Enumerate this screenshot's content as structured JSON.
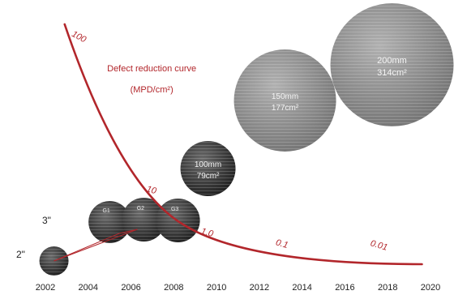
{
  "chart_data": {
    "type": "line",
    "x_ticks": [
      "2002",
      "2004",
      "2006",
      "2008",
      "2010",
      "2012",
      "2014",
      "2016",
      "2018",
      "2020"
    ],
    "xlim": [
      2002,
      2020
    ],
    "curve": {
      "label_line1": "Defect reduction curve",
      "label_line2": "(MPD/cm²)",
      "color": "#b2262b",
      "points": [
        {
          "x": 2002.8,
          "y": 100
        },
        {
          "x": 2006.8,
          "y": 10
        },
        {
          "x": 2009.5,
          "y": 1
        },
        {
          "x": 2012.8,
          "y": 0.1
        },
        {
          "x": 2017.0,
          "y": 0.01
        }
      ],
      "value_labels": [
        "100",
        "10",
        "1.0",
        "0.1",
        "0.01"
      ]
    },
    "inch_labels": [
      "2\"",
      "3\""
    ],
    "wafers": [
      {
        "year": 2002.4,
        "label": "",
        "sub": ""
      },
      {
        "year": 2005.0,
        "label": "G1",
        "sub": ""
      },
      {
        "year": 2006.6,
        "label": "G2",
        "sub": ""
      },
      {
        "year": 2008.2,
        "label": "G3",
        "sub": ""
      },
      {
        "year": 2009.6,
        "label": "100mm",
        "sub": "79cm²"
      },
      {
        "year": 2013.2,
        "label": "150mm",
        "sub": "177cm²"
      },
      {
        "year": 2018.2,
        "label": "200mm",
        "sub": "314cm²"
      }
    ]
  },
  "colors": {
    "background": "#ffffff",
    "curve": "#b2262b",
    "small_wafer": "#3a3a3a",
    "large_wafer": "#8a8a8a"
  }
}
